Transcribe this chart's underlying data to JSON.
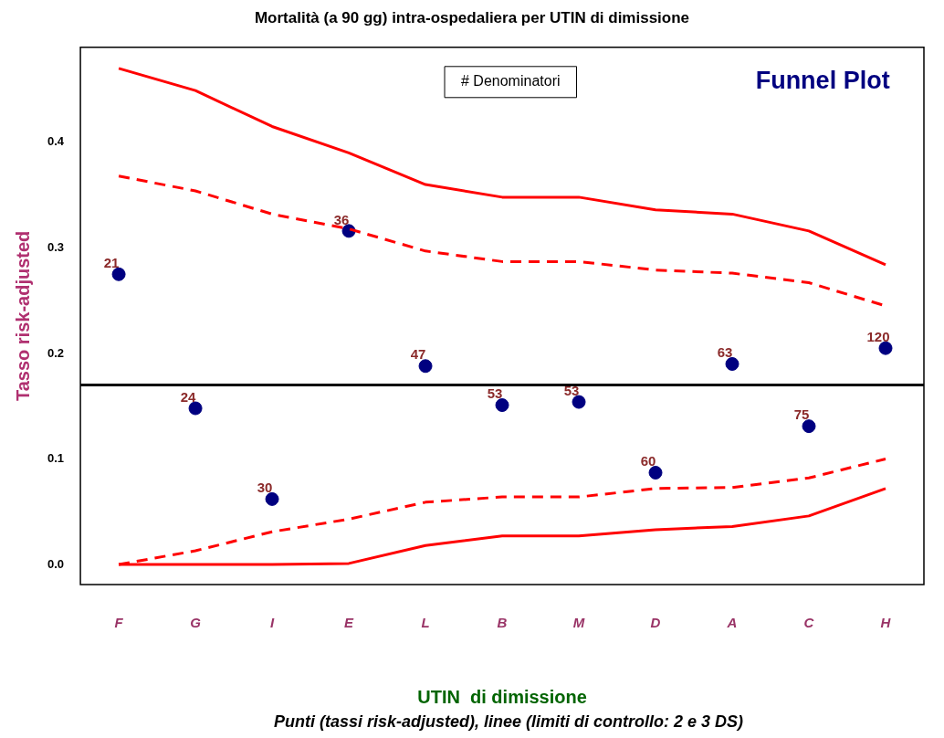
{
  "chart_data": {
    "type": "line",
    "title": "Mortalità (a 90 gg) intra-ospedaliera per UTIN di dimissione",
    "xlabel": "UTIN  di dimissione",
    "ylabel": "Tasso risk-adjusted",
    "categories": [
      "F",
      "G",
      "I",
      "E",
      "L",
      "B",
      "M",
      "D",
      "A",
      "C",
      "H"
    ],
    "ylim": [
      -0.019,
      0.49
    ],
    "yticks": [
      {
        "value": 0,
        "label": "0.0"
      },
      0.1,
      0.2,
      0.3,
      0.4
    ],
    "grid": false,
    "legend": false,
    "series": [
      {
        "color": "#ff0000",
        "line_style": "solid",
        "marker": "none",
        "values": [
          0.47,
          0.449,
          0.415,
          0.39,
          0.36,
          0.348,
          0.348,
          0.336,
          0.332,
          0.316,
          0.284
        ]
      },
      {
        "color": "#ff0000",
        "line_style": "dashed",
        "marker": "none",
        "values": [
          0.368,
          0.354,
          0.332,
          0.318,
          0.297,
          0.287,
          0.287,
          0.279,
          0.276,
          0.267,
          0.245
        ]
      },
      {
        "color": "#ff0000",
        "line_style": "dashed",
        "marker": "none",
        "values": [
          0.0,
          0.013,
          0.031,
          0.043,
          0.059,
          0.064,
          0.064,
          0.072,
          0.073,
          0.082,
          0.1
        ]
      },
      {
        "color": "#ff0000",
        "line_style": "solid",
        "marker": "none",
        "values": [
          0,
          0,
          0,
          0.001,
          0.018,
          0.027,
          0.027,
          0.033,
          0.036,
          0.046,
          0.072
        ]
      },
      {
        "type": "scatter",
        "color": "#000080",
        "marker": "circle",
        "values": [
          0.275,
          0.148,
          0.062,
          0.316,
          0.188,
          0.151,
          0.154,
          0.087,
          0.19,
          0.131,
          0.205
        ]
      }
    ],
    "ref_lines": [
      {
        "axis": "y",
        "value": 0.17,
        "color": "#000000",
        "line_style": "solid"
      }
    ],
    "annotations": [
      "# Denominatori",
      "Funnel Plot",
      "Punti (tassi risk-adjusted), linee (limiti di controllo: 2 e 3 DS)",
      {
        "text": "21",
        "x": "F",
        "y": 0.275
      },
      {
        "text": "24",
        "x": "G",
        "y": 0.148
      },
      {
        "text": "30",
        "x": "I",
        "y": 0.062
      },
      {
        "text": "36",
        "x": "E",
        "y": 0.316
      },
      {
        "text": "47",
        "x": "L",
        "y": 0.188
      },
      {
        "text": "53",
        "x": "B",
        "y": 0.151
      },
      {
        "text": "53",
        "x": "M",
        "y": 0.154
      },
      {
        "text": "60",
        "x": "D",
        "y": 0.087
      },
      {
        "text": "63",
        "x": "A",
        "y": 0.19
      },
      {
        "text": "75",
        "x": "C",
        "y": 0.131
      },
      {
        "text": "120",
        "x": "H",
        "y": 0.205
      }
    ]
  }
}
